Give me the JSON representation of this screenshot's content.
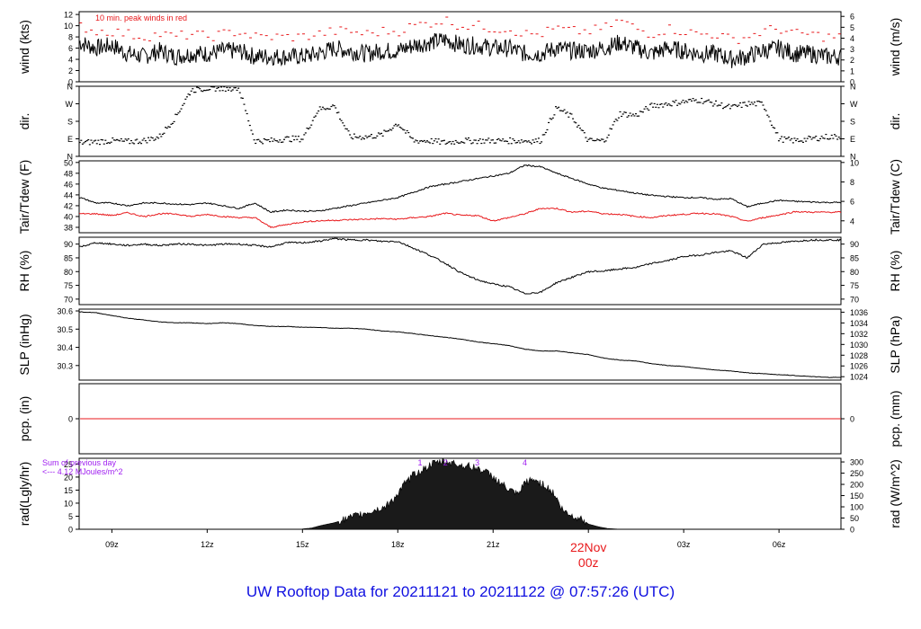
{
  "footer": {
    "title": "UW Rooftop Data for 20211121  to  20211122 @ 07:57:26  (UTC)"
  },
  "colors": {
    "line": "#000000",
    "red": "#e8191c",
    "purple": "#a020f0",
    "blue": "#1010e0"
  },
  "x_axis": {
    "tick_labels": [
      "09z",
      "12z",
      "15z",
      "18z",
      "21z",
      "03z",
      "06z"
    ],
    "tick_hours": [
      9,
      12,
      15,
      18,
      21,
      27,
      30
    ],
    "date_label": "22Nov",
    "date_sub_label": "00z",
    "date_hour": 24,
    "range_hours": [
      7.97,
      31.95
    ]
  },
  "chart_data": [
    {
      "id": "wind",
      "type": "line",
      "ylabel_left": "wind (kts)",
      "ylabel_right": "wind (m/s)",
      "ylim": [
        0,
        12.5
      ],
      "left_ticks": [
        0,
        2,
        4,
        6,
        8,
        10,
        12
      ],
      "right_ticks": [
        0,
        1,
        2,
        3,
        4,
        5,
        6
      ],
      "right_to_left_factor": 1.944,
      "annotation": "10 min. peak winds in red",
      "series": [
        {
          "name": "wind",
          "color": "#000000",
          "x": [
            8,
            8.5,
            9,
            9.5,
            10,
            10.5,
            11,
            11.5,
            12,
            12.5,
            13,
            13.5,
            14,
            14.5,
            15,
            15.5,
            16,
            16.5,
            17,
            17.5,
            18,
            18.5,
            19,
            19.5,
            20,
            20.5,
            21,
            21.5,
            22,
            22.5,
            23,
            23.5,
            24,
            24.5,
            25,
            25.5,
            26,
            26.5,
            27,
            27.5,
            28,
            28.5,
            29,
            29.5,
            30,
            30.5,
            31,
            31.5
          ],
          "y": [
            7,
            6,
            6.5,
            5,
            4.5,
            5.5,
            4.5,
            5,
            5,
            5.5,
            5.5,
            4.5,
            4.5,
            4.5,
            4.5,
            5,
            6,
            5.5,
            5,
            5.5,
            5.5,
            6.5,
            7,
            7.5,
            6.5,
            6.5,
            6,
            6,
            5,
            5,
            6,
            5.5,
            5.5,
            6,
            7,
            6,
            5,
            6,
            5.5,
            5,
            5,
            4,
            4.5,
            5.5,
            6,
            5,
            5,
            4.5
          ]
        },
        {
          "name": "10 min. peak winds",
          "color": "#e8191c",
          "x": [
            8,
            8.5,
            9,
            9.5,
            10,
            10.5,
            11,
            11.5,
            12,
            12.5,
            13,
            13.5,
            14,
            14.5,
            15,
            15.5,
            16,
            16.5,
            17,
            17.5,
            18,
            18.5,
            19,
            19.5,
            20,
            20.5,
            21,
            21.5,
            22,
            22.5,
            23,
            23.5,
            24,
            24.5,
            25,
            25.5,
            26,
            26.5,
            27,
            27.5,
            28,
            28.5,
            29,
            29.5,
            30,
            30.5,
            31,
            31.5
          ],
          "y": [
            10,
            9,
            9,
            8.5,
            8,
            8.5,
            8,
            8.5,
            8,
            8.5,
            9,
            8,
            8,
            8,
            8,
            8.5,
            9,
            9,
            8.5,
            9,
            9,
            10,
            10.5,
            11,
            10,
            10,
            9.5,
            9.5,
            8.5,
            8.5,
            9.5,
            9,
            9,
            9.5,
            11,
            9.5,
            8.5,
            9.5,
            9,
            8.5,
            8.5,
            7.5,
            8,
            9,
            9.5,
            8.5,
            8.5,
            8
          ]
        }
      ]
    },
    {
      "id": "dir",
      "type": "scatter",
      "ylabel_left": "dir.",
      "ylabel_right": "dir.",
      "ylim": [
        0,
        360
      ],
      "left_ticks": [
        0,
        90,
        180,
        270,
        360
      ],
      "left_tick_labels": [
        "N",
        "E",
        "S",
        "W",
        "N"
      ],
      "right_ticks": [
        0,
        90,
        180,
        270,
        360
      ],
      "right_tick_labels": [
        "N",
        "E",
        "S",
        "W",
        "N"
      ],
      "series": [
        {
          "name": "wind direction",
          "color": "#000000",
          "x": [
            8,
            8.5,
            9,
            9.5,
            10,
            10.5,
            11,
            11.5,
            12,
            12.5,
            13,
            13.5,
            14,
            14.5,
            15,
            15.5,
            16,
            16.5,
            17,
            17.5,
            18,
            18.5,
            19,
            19.5,
            20,
            20.5,
            21,
            21.5,
            22,
            22.5,
            23,
            23.5,
            24,
            24.5,
            25,
            25.5,
            26,
            26.5,
            27,
            27.5,
            28,
            28.5,
            29,
            29.5,
            30,
            30.5,
            31,
            31.5
          ],
          "y": [
            70,
            75,
            80,
            75,
            80,
            100,
            200,
            340,
            350,
            350,
            350,
            80,
            80,
            90,
            90,
            240,
            260,
            100,
            100,
            110,
            170,
            80,
            80,
            70,
            80,
            80,
            80,
            80,
            80,
            80,
            250,
            200,
            80,
            80,
            220,
            210,
            260,
            270,
            280,
            290,
            270,
            250,
            270,
            270,
            90,
            80,
            90,
            100
          ]
        }
      ]
    },
    {
      "id": "tair_tdew",
      "type": "line",
      "ylabel_left": "Tair/Tdew (F)",
      "ylabel_right": "Tair/Tdew (C)",
      "ylim": [
        37,
        50.3
      ],
      "left_ticks": [
        38,
        40,
        42,
        44,
        46,
        48,
        50
      ],
      "right_ticks": [
        4,
        6,
        8,
        10
      ],
      "right_to_left_c_to_f": true,
      "series": [
        {
          "name": "Tair",
          "color": "#000000",
          "x": [
            8,
            8.5,
            9,
            9.5,
            10,
            10.5,
            11,
            11.5,
            12,
            12.5,
            13,
            13.5,
            14,
            14.5,
            15,
            15.5,
            16,
            16.5,
            17,
            17.5,
            18,
            18.5,
            19,
            19.5,
            20,
            20.5,
            21,
            21.5,
            22,
            22.5,
            23,
            23.5,
            24,
            24.5,
            25,
            25.5,
            26,
            26.5,
            27,
            27.5,
            28,
            28.5,
            29,
            29.5,
            30,
            30.5,
            31,
            31.5
          ],
          "y": [
            43.5,
            42.5,
            42.5,
            42,
            42.5,
            42.5,
            42.3,
            42.2,
            42.5,
            42,
            41.5,
            42.5,
            40.8,
            41.2,
            41,
            41,
            41.5,
            42,
            42.5,
            43,
            43.5,
            44.5,
            45.5,
            46,
            46.5,
            47,
            47.5,
            48,
            49.5,
            49.2,
            48,
            47,
            46,
            45.2,
            44.8,
            44.3,
            43.9,
            43.7,
            43.5,
            43.5,
            43.2,
            43.3,
            41.8,
            42.5,
            43,
            42.8,
            42.7,
            42.6
          ]
        },
        {
          "name": "Tdew",
          "color": "#e8191c",
          "x": [
            8,
            8.5,
            9,
            9.5,
            10,
            10.5,
            11,
            11.5,
            12,
            12.5,
            13,
            13.5,
            14,
            14.5,
            15,
            15.5,
            16,
            16.5,
            17,
            17.5,
            18,
            18.5,
            19,
            19.5,
            20,
            20.5,
            21,
            21.5,
            22,
            22.5,
            23,
            23.5,
            24,
            24.5,
            25,
            25.5,
            26,
            26.5,
            27,
            27.5,
            28,
            28.5,
            29,
            29.5,
            30,
            30.5,
            31,
            31.5
          ],
          "y": [
            40.5,
            40.5,
            40.2,
            40.7,
            40,
            40.5,
            40.5,
            40,
            40.4,
            40,
            39.8,
            39.8,
            38,
            38.5,
            39,
            39.2,
            39.3,
            39.4,
            39.5,
            39.6,
            39.5,
            39.8,
            40,
            40.6,
            40.2,
            40.2,
            39.2,
            39.8,
            40.5,
            41.5,
            41.5,
            40.8,
            41,
            40.5,
            40.4,
            40,
            39.8,
            40.2,
            40.4,
            40.6,
            40.5,
            40,
            39.1,
            39.8,
            40.3,
            40.9,
            40.8,
            40.8
          ]
        }
      ]
    },
    {
      "id": "rh",
      "type": "line",
      "ylabel_left": "RH (%)",
      "ylabel_right": "RH (%)",
      "ylim": [
        68,
        92.5
      ],
      "left_ticks": [
        70,
        75,
        80,
        85,
        90
      ],
      "right_ticks": [
        70,
        75,
        80,
        85,
        90
      ],
      "series": [
        {
          "name": "RH",
          "color": "#000000",
          "x": [
            8,
            8.5,
            9,
            9.5,
            10,
            10.5,
            11,
            11.5,
            12,
            12.5,
            13,
            13.5,
            14,
            14.5,
            15,
            15.5,
            16,
            16.5,
            17,
            17.5,
            18,
            18.5,
            19,
            19.5,
            20,
            20.5,
            21,
            21.5,
            22,
            22.5,
            23,
            23.5,
            24,
            24.5,
            25,
            25.5,
            26,
            26.5,
            27,
            27.5,
            28,
            28.5,
            29,
            29.5,
            30,
            30.5,
            31,
            31.5
          ],
          "y": [
            89,
            90.5,
            90,
            89.5,
            90,
            89.5,
            90,
            90,
            89.5,
            90,
            90,
            89.5,
            89,
            90.5,
            90.5,
            91,
            92,
            91.5,
            91.5,
            91,
            91,
            88.5,
            86,
            83,
            79.5,
            77,
            75.5,
            74.5,
            72,
            72.5,
            76,
            78,
            80,
            80.2,
            81,
            81.5,
            83,
            84,
            85.5,
            86,
            87,
            87.5,
            85,
            90,
            90.5,
            91,
            91.5,
            91.5
          ]
        }
      ]
    },
    {
      "id": "slp",
      "type": "line",
      "ylabel_left": "SLP (inHg)",
      "ylabel_right": "SLP (hPa)",
      "ylim": [
        30.22,
        30.61
      ],
      "left_ticks": [
        30.3,
        30.4,
        30.5,
        30.6
      ],
      "right_ticks": [
        1024,
        1026,
        1028,
        1030,
        1032,
        1034,
        1036
      ],
      "right_to_left_factor": 0.02953,
      "series": [
        {
          "name": "SLP",
          "color": "#000000",
          "x": [
            8,
            8.5,
            9,
            9.5,
            10,
            10.5,
            11,
            11.5,
            12,
            12.5,
            13,
            13.5,
            14,
            14.5,
            15,
            15.5,
            16,
            16.5,
            17,
            17.5,
            18,
            18.5,
            19,
            19.5,
            20,
            20.5,
            21,
            21.5,
            22,
            22.5,
            23,
            23.5,
            24,
            24.5,
            25,
            25.5,
            26,
            26.5,
            27,
            27.5,
            28,
            28.5,
            29,
            29.5,
            30,
            30.5,
            31,
            31.5
          ],
          "y": [
            30.595,
            30.59,
            30.575,
            30.56,
            30.55,
            30.54,
            30.535,
            30.535,
            30.53,
            30.535,
            30.53,
            30.52,
            30.515,
            30.515,
            30.51,
            30.51,
            30.505,
            30.505,
            30.5,
            30.49,
            30.485,
            30.475,
            30.465,
            30.455,
            30.445,
            30.43,
            30.42,
            30.41,
            30.39,
            30.38,
            30.38,
            30.37,
            30.36,
            30.34,
            30.33,
            30.325,
            30.31,
            30.3,
            30.295,
            30.285,
            30.275,
            30.27,
            30.26,
            30.255,
            30.25,
            30.245,
            30.24,
            30.235
          ]
        }
      ]
    },
    {
      "id": "pcp",
      "type": "line",
      "ylabel_left": "pcp. (in)",
      "ylabel_right": "pcp. (mm)",
      "ylim": [
        -1,
        1
      ],
      "left_ticks": [
        0
      ],
      "right_ticks": [
        0
      ],
      "series": [
        {
          "name": "precipitation",
          "color": "#e8191c",
          "x": [
            8,
            31.95
          ],
          "y": [
            0,
            0
          ]
        }
      ]
    },
    {
      "id": "rad",
      "type": "area",
      "ylabel_left": "rad(Lgly/hr)",
      "ylabel_right": "rad (W/m^2)",
      "ylim": [
        0,
        27.2
      ],
      "left_ticks": [
        0,
        5,
        10,
        15,
        20,
        25
      ],
      "right_ticks": [
        0,
        50,
        100,
        150,
        200,
        250,
        300
      ],
      "right_to_left_factor": 0.086,
      "annotation_lines": [
        "Sum of previous day",
        "<--- 4.12 MJoules/m^2"
      ],
      "peak_labels": [
        "1",
        "2",
        "3",
        "4"
      ],
      "peak_hours": [
        18.7,
        19.5,
        20.5,
        22
      ],
      "series": [
        {
          "name": "radiation",
          "color": "#1a1a1a",
          "x": [
            14.9,
            15.3,
            15.6,
            16,
            16.4,
            16.8,
            17.2,
            17.6,
            17.9,
            18.2,
            18.5,
            18.8,
            19.1,
            19.4,
            19.7,
            20,
            20.3,
            20.6,
            20.9,
            21.2,
            21.5,
            21.8,
            22,
            22.3,
            22.6,
            22.9,
            23.2,
            23.5,
            23.8,
            24,
            24.3,
            24.6,
            25
          ],
          "y": [
            0,
            0.5,
            1.5,
            2.5,
            4,
            5.5,
            7,
            8.5,
            12,
            17,
            21,
            23,
            25,
            26,
            25.5,
            24.5,
            24,
            23,
            21,
            18,
            15,
            13,
            18,
            19,
            17,
            14,
            7,
            5,
            4,
            2,
            1,
            0.3,
            0
          ]
        }
      ]
    }
  ]
}
